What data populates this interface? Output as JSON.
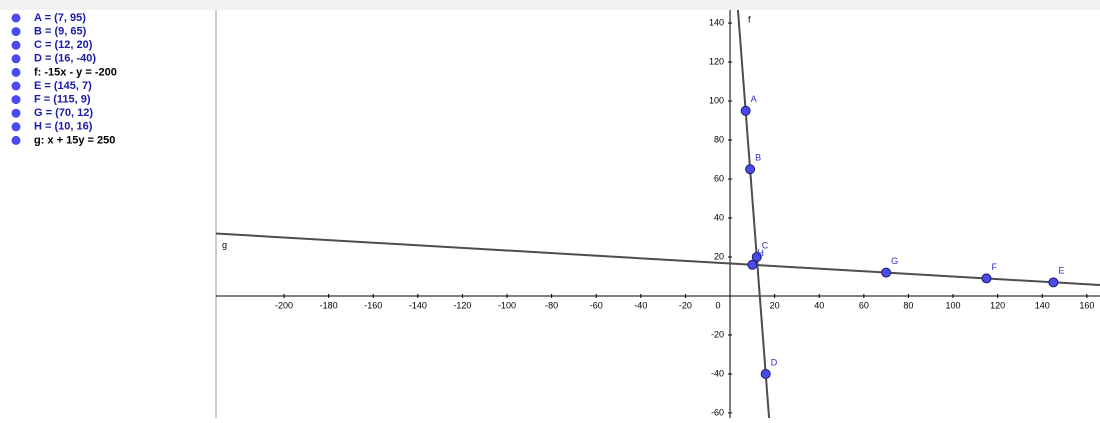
{
  "algebra": [
    {
      "text": "A = (7, 95)",
      "color": "#1a1aa8"
    },
    {
      "text": "B = (9, 65)",
      "color": "#1a1aa8"
    },
    {
      "text": "C = (12, 20)",
      "color": "#1a1aa8"
    },
    {
      "text": "D = (16, -40)",
      "color": "#1a1aa8"
    },
    {
      "text": "f: -15x - y = -200",
      "color": "#000000"
    },
    {
      "text": "E = (145, 7)",
      "color": "#1a1aa8"
    },
    {
      "text": "F = (115, 9)",
      "color": "#1a1aa8"
    },
    {
      "text": "G = (70, 12)",
      "color": "#1a1aa8"
    },
    {
      "text": "H = (10, 16)",
      "color": "#1a1aa8"
    },
    {
      "text": "g: x + 15y = 250",
      "color": "#000000"
    }
  ],
  "graphics": {
    "xlim": [
      -230.5,
      165.9
    ],
    "ylim": [
      -62.6,
      146.7
    ],
    "xticks": [
      -200,
      -180,
      -160,
      -140,
      -120,
      -100,
      -80,
      -60,
      -40,
      -20,
      0,
      20,
      40,
      60,
      80,
      100,
      120,
      140,
      160
    ],
    "yticks": [
      -60,
      -40,
      -20,
      20,
      40,
      60,
      80,
      100,
      120,
      140
    ],
    "point_color": "#4a4af0",
    "line_color": "#4d4d4d",
    "points": [
      {
        "name": "A",
        "x": 7,
        "y": 95
      },
      {
        "name": "B",
        "x": 9,
        "y": 65
      },
      {
        "name": "C",
        "x": 12,
        "y": 20
      },
      {
        "name": "D",
        "x": 16,
        "y": -40
      },
      {
        "name": "E",
        "x": 145,
        "y": 7
      },
      {
        "name": "F",
        "x": 115,
        "y": 9
      },
      {
        "name": "G",
        "x": 70,
        "y": 12
      },
      {
        "name": "H",
        "x": 10,
        "y": 16
      }
    ],
    "lines": [
      {
        "name": "f",
        "a": -15,
        "b": -1,
        "c": -200
      },
      {
        "name": "g",
        "a": 1,
        "b": 15,
        "c": 250
      }
    ]
  }
}
